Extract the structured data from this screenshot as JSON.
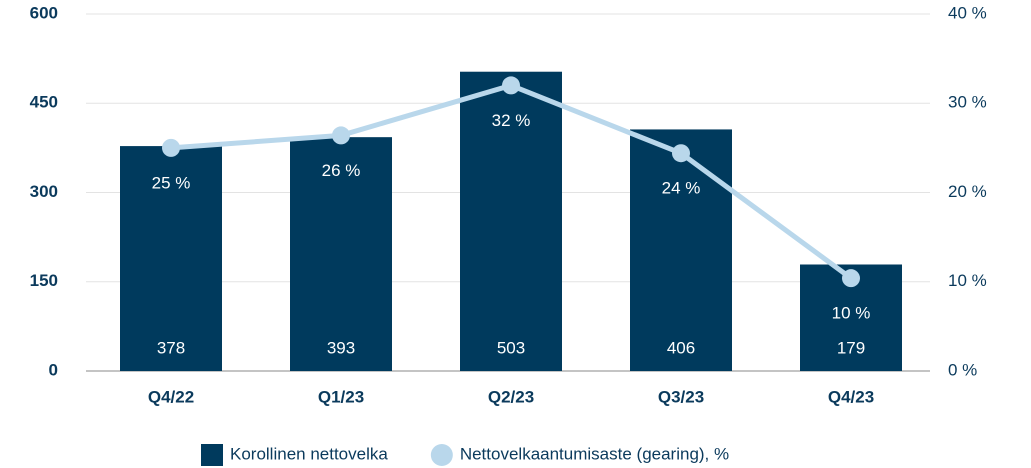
{
  "chart_data": {
    "type": "bar",
    "categories": [
      "Q4/22",
      "Q1/23",
      "Q2/23",
      "Q3/23",
      "Q4/23"
    ],
    "ylim": [
      0,
      600
    ],
    "yticks": [
      0,
      150,
      300,
      450,
      600
    ],
    "y2lim": [
      0,
      40
    ],
    "y2ticks": [
      {
        "value": 0,
        "label": "0 %"
      },
      {
        "value": 10,
        "label": "10 %"
      },
      {
        "value": 20,
        "label": "20 %"
      },
      {
        "value": 30,
        "label": "30 %"
      },
      {
        "value": 40,
        "label": "40 %"
      }
    ],
    "grid": true,
    "legend": "bottom",
    "series": [
      {
        "name": "Korollinen nettovelka",
        "type": "bar",
        "color": "#003a5d",
        "values": [
          378,
          393,
          503,
          406,
          179
        ]
      },
      {
        "name": "Nettovelkaantumisaste (gearing), %",
        "type": "line",
        "axis": "y2",
        "color": "#b9d7eb",
        "values": [
          25,
          26.4,
          32,
          24.4,
          10.4
        ],
        "value_labels": [
          "25 %",
          "26 %",
          "32 %",
          "24 %",
          "10 %"
        ]
      }
    ]
  }
}
